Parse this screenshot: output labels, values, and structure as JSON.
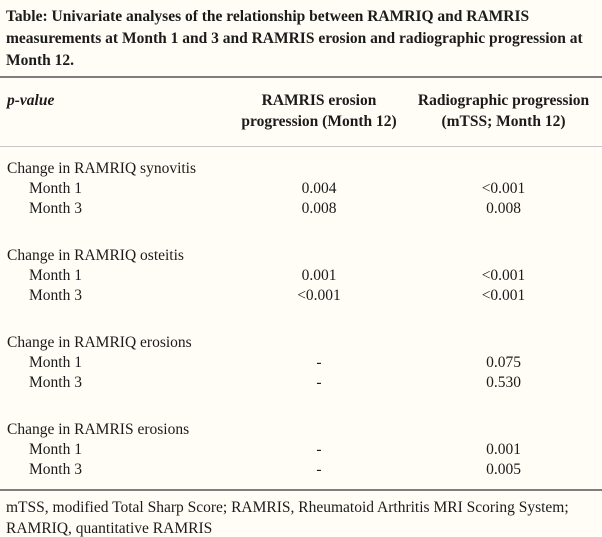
{
  "title": "Table: Univariate analyses of the relationship between RAMRIQ and RAMRIS measurements at Month 1 and 3 and RAMRIS erosion and radiographic progression at Month 12.",
  "header": {
    "col1": "p-value",
    "col2": [
      "RAMRIS erosion",
      "progression (Month 12)"
    ],
    "col3": [
      "Radiographic progression",
      "(mTSS; Month 12)"
    ]
  },
  "sections": [
    {
      "label": "Change in RAMRIQ synovitis",
      "rows": [
        {
          "label": "Month 1",
          "ramris_erosion": "0.004",
          "radiographic": "<0.001"
        },
        {
          "label": "Month 3",
          "ramris_erosion": "0.008",
          "radiographic": "0.008"
        }
      ]
    },
    {
      "label": "Change in RAMRIQ osteitis",
      "rows": [
        {
          "label": "Month 1",
          "ramris_erosion": "0.001",
          "radiographic": "<0.001"
        },
        {
          "label": "Month 3",
          "ramris_erosion": "<0.001",
          "radiographic": "<0.001"
        }
      ]
    },
    {
      "label": "Change in RAMRIQ erosions",
      "rows": [
        {
          "label": "Month 1",
          "ramris_erosion": "-",
          "radiographic": "0.075"
        },
        {
          "label": "Month 3",
          "ramris_erosion": "-",
          "radiographic": "0.530"
        }
      ]
    },
    {
      "label": "Change in RAMRIS erosions",
      "rows": [
        {
          "label": "Month 1",
          "ramris_erosion": "-",
          "radiographic": "0.001"
        },
        {
          "label": "Month 3",
          "ramris_erosion": "-",
          "radiographic": "0.005"
        }
      ]
    }
  ],
  "footnote": "mTSS, modified Total Sharp Score; RAMRIS, Rheumatoid Arthritis MRI Scoring System; RAMRIQ, quantitative RAMRIS",
  "colors": {
    "background": "#fffdf6",
    "text": "#1b1b1b",
    "rule_dark": "#7e7e7e",
    "rule_light": "#c6c6c6"
  }
}
